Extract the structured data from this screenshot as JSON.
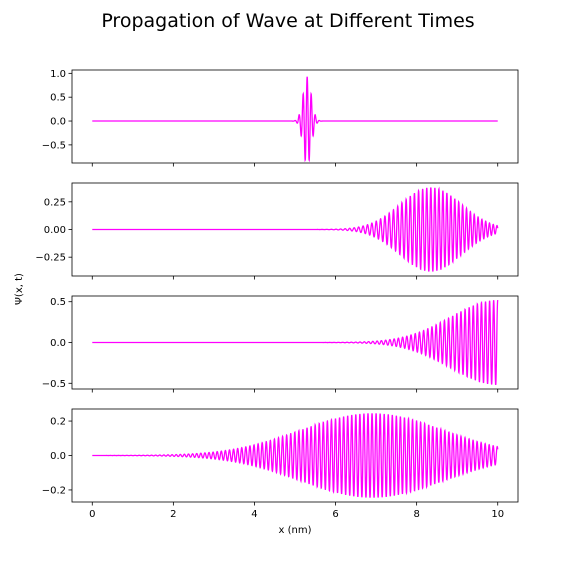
{
  "chart_data": {
    "type": "line",
    "title": "Propagation of Wave at Different Times",
    "xlabel": "x (nm)",
    "ylabel": "Ψ(x, t)",
    "xlim": [
      -0.5,
      10.5
    ],
    "xticks": [
      0,
      2,
      4,
      6,
      8,
      10
    ],
    "xtick_labels": [
      "0",
      "2",
      "4",
      "6",
      "8",
      "10"
    ],
    "line_color": "#ff00ff",
    "grid": false,
    "panels": [
      {
        "ylim": [
          -0.88,
          1.07
        ],
        "yticks": [
          -0.5,
          0.0,
          0.5,
          1.0
        ],
        "ytick_labels": [
          "−0.5",
          "0.0",
          "0.5",
          "1.0"
        ],
        "packet": {
          "center": 5.3,
          "width": 0.1,
          "amplitude": 0.93,
          "cycles_per_nm": 10,
          "chirp": 0,
          "grow": 0
        }
      },
      {
        "ylim": [
          -0.42,
          0.42
        ],
        "yticks": [
          -0.25,
          0.0,
          0.25
        ],
        "ytick_labels": [
          "−0.25",
          "0.00",
          "0.25"
        ],
        "packet": {
          "center": 8.35,
          "width": 0.75,
          "amplitude": 0.38,
          "cycles_per_nm": 10,
          "chirp": 0.9,
          "grow": 0
        }
      },
      {
        "ylim": [
          -0.57,
          0.57
        ],
        "yticks": [
          -0.5,
          0.0,
          0.5
        ],
        "ytick_labels": [
          "−0.5",
          "0.0",
          "0.5"
        ],
        "packet": {
          "center": 10.0,
          "width": 1.15,
          "amplitude": 0.52,
          "cycles_per_nm": 10,
          "chirp": 0.7,
          "grow": 0
        }
      },
      {
        "ylim": [
          -0.27,
          0.27
        ],
        "yticks": [
          -0.2,
          0.0,
          0.2
        ],
        "ytick_labels": [
          "−0.2",
          "0.0",
          "0.2"
        ],
        "packet": {
          "center": 6.9,
          "width": 1.75,
          "amplitude": 0.245,
          "cycles_per_nm": 10,
          "chirp": 0.25,
          "grow": 0
        }
      }
    ]
  }
}
